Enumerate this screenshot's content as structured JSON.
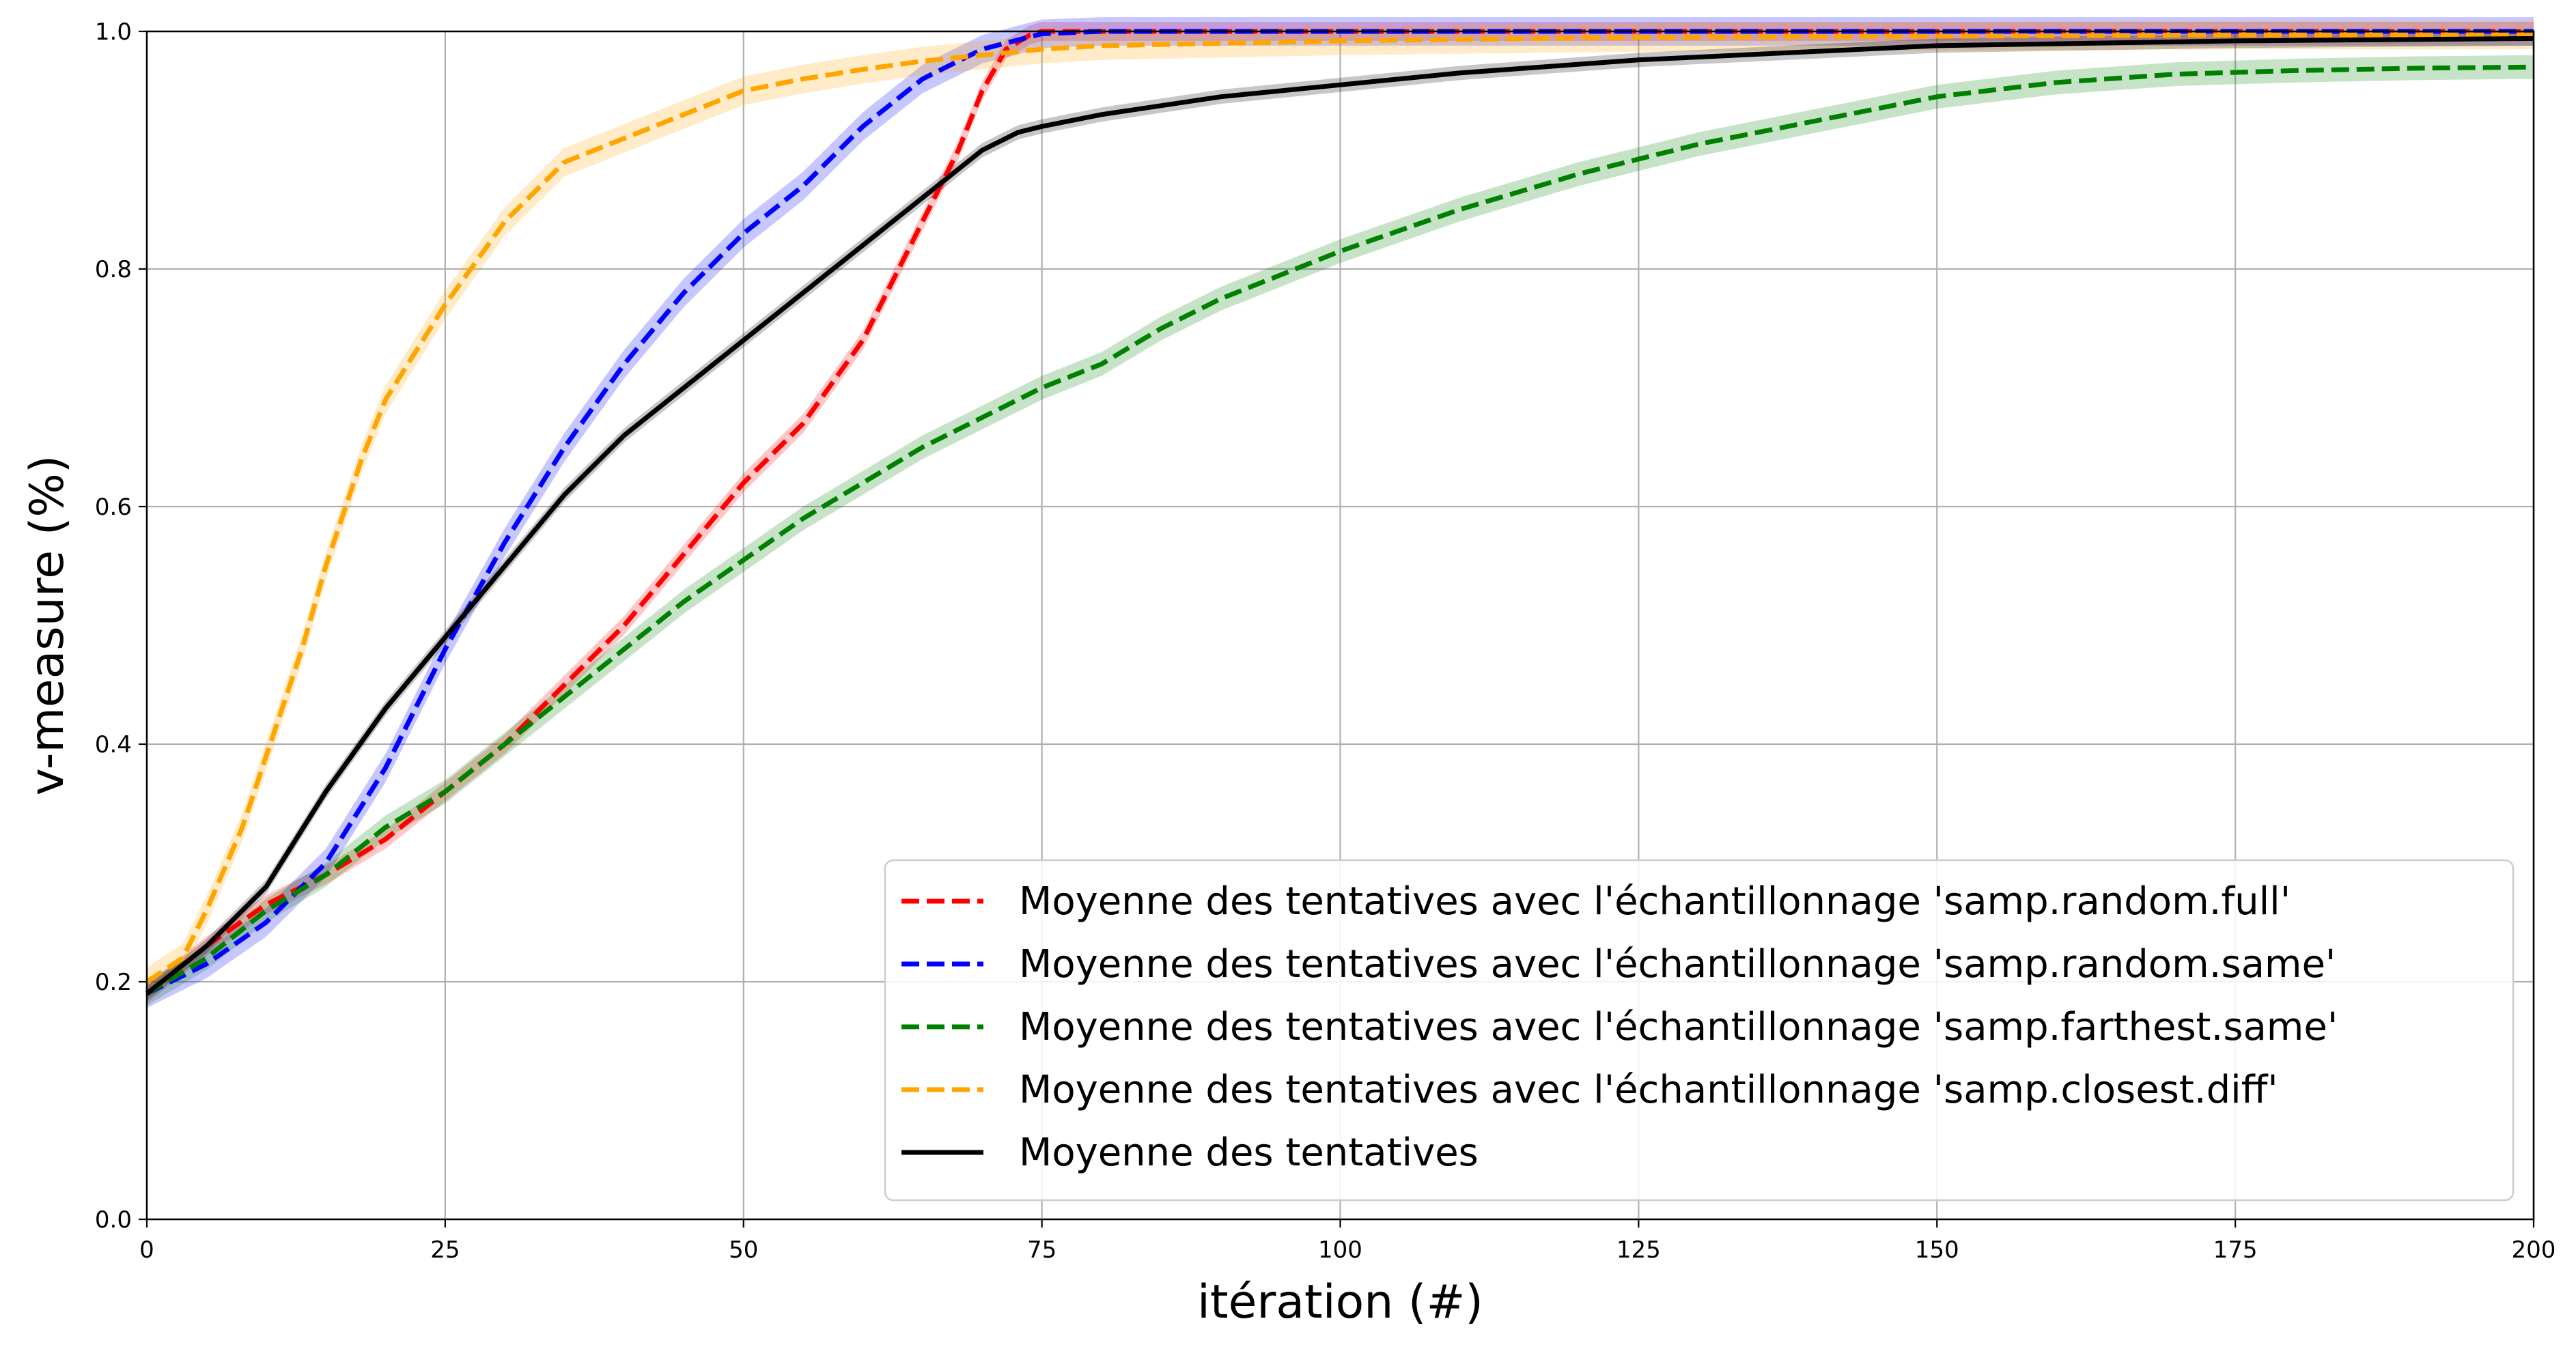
{
  "chart_data": {
    "type": "line",
    "title": "",
    "xlabel": "itération (#)",
    "ylabel": "v-measure (%)",
    "xlim": [
      0,
      200
    ],
    "ylim": [
      0.0,
      1.0
    ],
    "xticks": [
      0,
      25,
      50,
      75,
      100,
      125,
      150,
      175,
      200
    ],
    "yticks": [
      0.0,
      0.2,
      0.4,
      0.6,
      0.8,
      1.0
    ],
    "xtick_labels": [
      "0",
      "25",
      "50",
      "75",
      "100",
      "125",
      "150",
      "175",
      "200"
    ],
    "ytick_labels": [
      "0.0",
      "0.2",
      "0.4",
      "0.6",
      "0.8",
      "1.0"
    ],
    "grid": true,
    "legend_position": "bottom-right",
    "series": [
      {
        "name": "Moyenne des tentatives avec l'échantillonnage 'samp.random.full'",
        "color": "#ff0000",
        "dash": "dashed",
        "band": 0.008,
        "x": [
          0,
          5,
          10,
          15,
          20,
          25,
          30,
          35,
          40,
          45,
          50,
          55,
          60,
          63,
          66,
          68,
          70,
          72,
          74,
          75,
          80,
          100,
          125,
          150,
          175,
          200
        ],
        "y": [
          0.19,
          0.23,
          0.265,
          0.29,
          0.32,
          0.36,
          0.4,
          0.45,
          0.5,
          0.56,
          0.62,
          0.67,
          0.74,
          0.8,
          0.86,
          0.9,
          0.95,
          0.985,
          0.997,
          1.0,
          1.0,
          1.0,
          1.0,
          1.0,
          1.0,
          1.0
        ]
      },
      {
        "name": "Moyenne des tentatives avec l'échantillonnage 'samp.random.same'",
        "color": "#0000ff",
        "dash": "dashed",
        "band": 0.012,
        "x": [
          0,
          5,
          10,
          15,
          20,
          25,
          30,
          35,
          40,
          45,
          50,
          55,
          60,
          65,
          70,
          75,
          80,
          100,
          125,
          150,
          175,
          200
        ],
        "y": [
          0.19,
          0.215,
          0.25,
          0.3,
          0.38,
          0.48,
          0.57,
          0.65,
          0.72,
          0.78,
          0.83,
          0.87,
          0.92,
          0.96,
          0.985,
          0.998,
          1.0,
          1.0,
          1.0,
          1.0,
          1.0,
          1.0
        ]
      },
      {
        "name": "Moyenne des tentatives avec l'échantillonnage 'samp.farthest.same'",
        "color": "#008000",
        "dash": "dashed",
        "band": 0.01,
        "x": [
          0,
          5,
          10,
          15,
          20,
          25,
          30,
          35,
          40,
          45,
          50,
          55,
          60,
          65,
          70,
          75,
          80,
          85,
          90,
          95,
          100,
          110,
          120,
          130,
          140,
          150,
          160,
          170,
          180,
          190,
          200
        ],
        "y": [
          0.19,
          0.22,
          0.26,
          0.29,
          0.33,
          0.36,
          0.4,
          0.44,
          0.48,
          0.52,
          0.555,
          0.59,
          0.62,
          0.65,
          0.675,
          0.7,
          0.72,
          0.75,
          0.775,
          0.795,
          0.815,
          0.85,
          0.88,
          0.905,
          0.925,
          0.945,
          0.957,
          0.964,
          0.967,
          0.969,
          0.97
        ]
      },
      {
        "name": "Moyenne des tentatives avec l'échantillonnage 'samp.closest.diff'",
        "color": "#ffa500",
        "dash": "dashed",
        "band": 0.012,
        "x": [
          0,
          3,
          5,
          8,
          10,
          13,
          15,
          18,
          20,
          25,
          30,
          35,
          40,
          45,
          50,
          55,
          60,
          65,
          70,
          75,
          80,
          90,
          100,
          125,
          150,
          175,
          200
        ],
        "y": [
          0.2,
          0.22,
          0.26,
          0.33,
          0.39,
          0.48,
          0.55,
          0.64,
          0.69,
          0.77,
          0.84,
          0.89,
          0.91,
          0.93,
          0.95,
          0.96,
          0.968,
          0.975,
          0.98,
          0.985,
          0.988,
          0.99,
          0.992,
          0.995,
          0.996,
          0.997,
          0.997
        ]
      },
      {
        "name": "Moyenne des tentatives",
        "color": "#000000",
        "dash": "solid",
        "band": 0.006,
        "x": [
          0,
          5,
          10,
          15,
          20,
          25,
          30,
          35,
          40,
          45,
          50,
          55,
          60,
          65,
          70,
          73,
          75,
          80,
          90,
          100,
          110,
          125,
          150,
          175,
          200
        ],
        "y": [
          0.19,
          0.23,
          0.28,
          0.36,
          0.43,
          0.49,
          0.55,
          0.61,
          0.66,
          0.7,
          0.74,
          0.78,
          0.82,
          0.86,
          0.9,
          0.915,
          0.92,
          0.93,
          0.945,
          0.955,
          0.965,
          0.976,
          0.988,
          0.992,
          0.994
        ]
      }
    ]
  }
}
